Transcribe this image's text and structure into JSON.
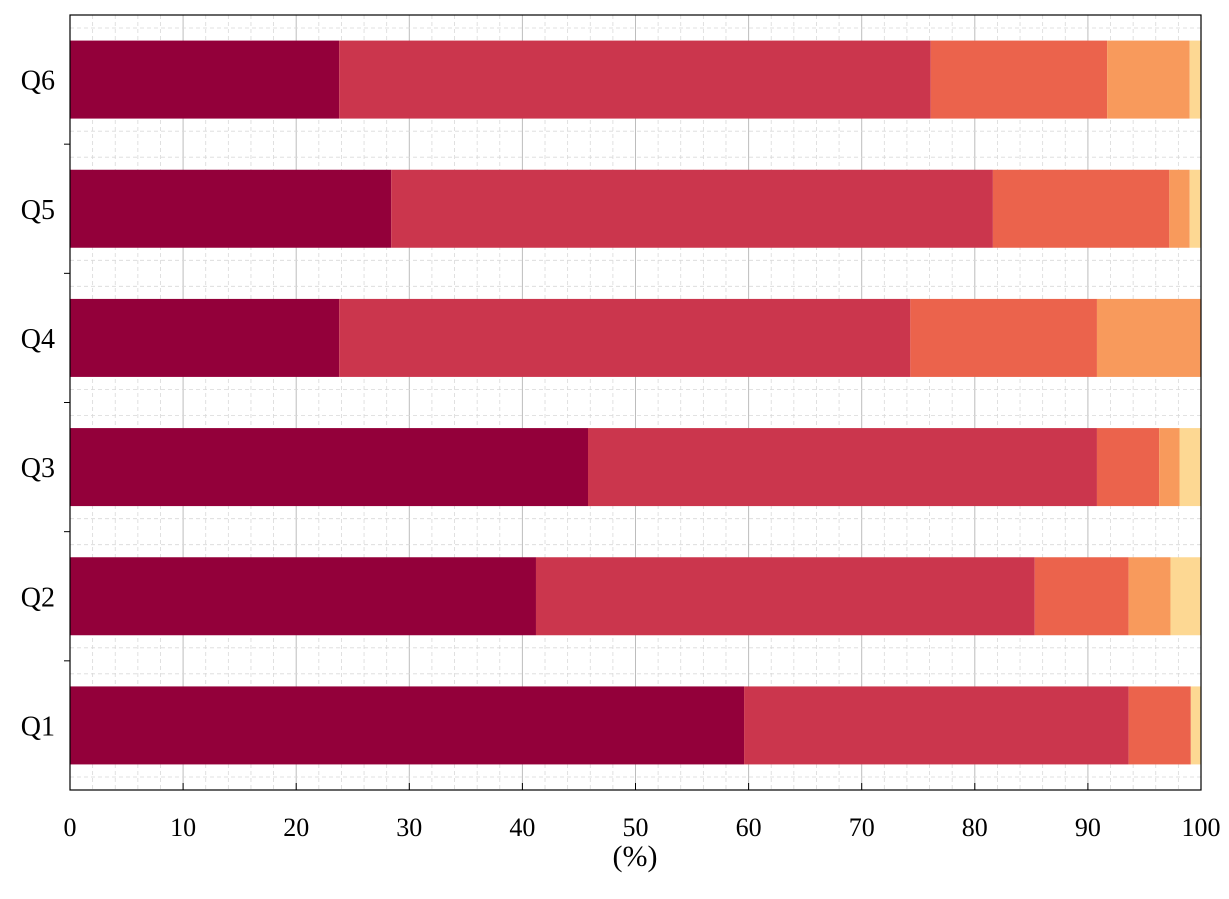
{
  "chart_data": {
    "type": "bar",
    "orientation": "horizontal",
    "stacked": true,
    "categories": [
      "Q1",
      "Q2",
      "Q3",
      "Q4",
      "Q5",
      "Q6"
    ],
    "series": [
      {
        "values": [
          59.6,
          41.2,
          45.8,
          23.8,
          28.4,
          23.8
        ],
        "color": "#93003a"
      },
      {
        "values": [
          34.0,
          44.1,
          45.0,
          50.5,
          53.2,
          52.3
        ],
        "color": "#cb364d"
      },
      {
        "values": [
          5.5,
          8.3,
          5.5,
          16.5,
          15.6,
          15.6
        ],
        "color": "#eb634c"
      },
      {
        "values": [
          0.0,
          3.7,
          1.8,
          9.2,
          1.8,
          7.3
        ],
        "color": "#f89a5c"
      },
      {
        "values": [
          0.9,
          2.7,
          1.9,
          0.0,
          1.0,
          1.0
        ],
        "color": "#fdd893"
      }
    ],
    "xlabel": "(%)",
    "ylabel": "",
    "title": "",
    "xlim": [
      0,
      100
    ],
    "xticks": [
      "0",
      "10",
      "20",
      "30",
      "40",
      "50",
      "60",
      "70",
      "80",
      "90",
      "100"
    ],
    "grid": "major and minor vertical; minor dashed horizontal",
    "legend": "none"
  }
}
